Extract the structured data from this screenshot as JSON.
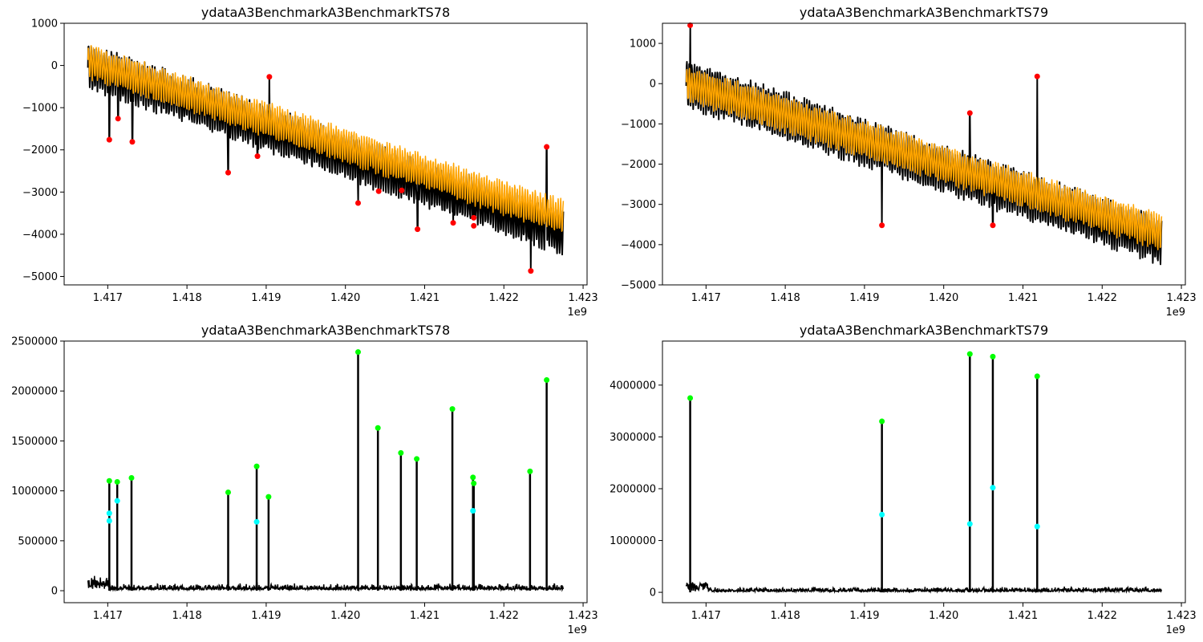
{
  "chart_data": [
    {
      "type": "line",
      "title": "ydataA3BenchmarkA3BenchmarkTS78",
      "x_offset_label": "1e9",
      "xlim": [
        1.41645,
        1.42305
      ],
      "ylim": [
        -5200,
        1000
      ],
      "x_ticks": [
        1.417,
        1.418,
        1.419,
        1.42,
        1.421,
        1.422,
        1.423
      ],
      "x_tick_labels": [
        "1.417",
        "1.418",
        "1.419",
        "1.420",
        "1.421",
        "1.422",
        "1.423"
      ],
      "y_ticks": [
        1000,
        0,
        -1000,
        -2000,
        -3000,
        -4000,
        -5000
      ],
      "y_tick_labels": [
        "1000",
        "0",
        "−1000",
        "−2000",
        "−3000",
        "−4000",
        "−5000"
      ],
      "x_range": [
        1.41675,
        1.42275
      ],
      "series": [
        {
          "color": "#000000",
          "start_value": 0,
          "end_value": -3950,
          "amplitude": 600
        },
        {
          "color": "#ffa500",
          "start_value": 100,
          "end_value": -3600,
          "amplitude": 450
        }
      ],
      "marker_color": "#ff0000",
      "anomalies": [
        {
          "x": 1.41702,
          "y": -1760
        },
        {
          "x": 1.41713,
          "y": -1260
        },
        {
          "x": 1.41731,
          "y": -1810
        },
        {
          "x": 1.41852,
          "y": -2540
        },
        {
          "x": 1.41889,
          "y": -2150
        },
        {
          "x": 1.41904,
          "y": -270
        },
        {
          "x": 1.42016,
          "y": -3260
        },
        {
          "x": 1.42042,
          "y": -2980
        },
        {
          "x": 1.42071,
          "y": -2960
        },
        {
          "x": 1.42091,
          "y": -3880
        },
        {
          "x": 1.42136,
          "y": -3730
        },
        {
          "x": 1.42162,
          "y": -3610
        },
        {
          "x": 1.42162,
          "y": -3800
        },
        {
          "x": 1.42234,
          "y": -4870
        },
        {
          "x": 1.42254,
          "y": -1930
        }
      ]
    },
    {
      "type": "line",
      "title": "ydataA3BenchmarkA3BenchmarkTS79",
      "x_offset_label": "1e9",
      "xlim": [
        1.41645,
        1.42305
      ],
      "ylim": [
        -5000,
        1500
      ],
      "x_ticks": [
        1.417,
        1.418,
        1.419,
        1.42,
        1.421,
        1.422,
        1.423
      ],
      "x_tick_labels": [
        "1.417",
        "1.418",
        "1.419",
        "1.420",
        "1.421",
        "1.422",
        "1.423"
      ],
      "y_ticks": [
        1000,
        0,
        -1000,
        -2000,
        -3000,
        -4000,
        -5000
      ],
      "y_tick_labels": [
        "1000",
        "0",
        "−1000",
        "−2000",
        "−3000",
        "−4000",
        "−5000"
      ],
      "x_range": [
        1.41675,
        1.42275
      ],
      "series": [
        {
          "color": "#000000",
          "start_value": 0,
          "end_value": -3900,
          "amplitude": 650
        },
        {
          "color": "#ffa500",
          "start_value": 0,
          "end_value": -3700,
          "amplitude": 500
        }
      ],
      "marker_color": "#ff0000",
      "anomalies": [
        {
          "x": 1.4168,
          "y": 1450
        },
        {
          "x": 1.41922,
          "y": -3520
        },
        {
          "x": 1.42033,
          "y": -730
        },
        {
          "x": 1.42062,
          "y": -3520
        },
        {
          "x": 1.42118,
          "y": 180
        }
      ]
    },
    {
      "type": "line",
      "title": "ydataA3BenchmarkA3BenchmarkTS78",
      "x_offset_label": "1e9",
      "xlim": [
        1.41645,
        1.42305
      ],
      "ylim": [
        -120000,
        2500000
      ],
      "x_ticks": [
        1.417,
        1.418,
        1.419,
        1.42,
        1.421,
        1.422,
        1.423
      ],
      "x_tick_labels": [
        "1.417",
        "1.418",
        "1.419",
        "1.420",
        "1.421",
        "1.422",
        "1.423"
      ],
      "y_ticks": [
        0,
        500000,
        1000000,
        1500000,
        2000000,
        2500000
      ],
      "y_tick_labels": [
        "0",
        "500000",
        "1000000",
        "1500000",
        "2000000",
        "2500000"
      ],
      "x_range": [
        1.41675,
        1.42275
      ],
      "series": [
        {
          "color": "#000000",
          "baseline": 40000
        }
      ],
      "spikes": [
        {
          "x": 1.41702,
          "y": 1100000
        },
        {
          "x": 1.41712,
          "y": 1090000
        },
        {
          "x": 1.4173,
          "y": 1130000
        },
        {
          "x": 1.41852,
          "y": 985000
        },
        {
          "x": 1.41888,
          "y": 1245000
        },
        {
          "x": 1.41903,
          "y": 940000
        },
        {
          "x": 1.42016,
          "y": 2390000
        },
        {
          "x": 1.42041,
          "y": 1630000
        },
        {
          "x": 1.4207,
          "y": 1380000
        },
        {
          "x": 1.4209,
          "y": 1320000
        },
        {
          "x": 1.42135,
          "y": 1820000
        },
        {
          "x": 1.42161,
          "y": 1135000
        },
        {
          "x": 1.42162,
          "y": 1075000
        },
        {
          "x": 1.42233,
          "y": 1195000
        },
        {
          "x": 1.42254,
          "y": 2110000
        }
      ],
      "peak_color": "#00ff00",
      "secondary_color": "#00ffff",
      "secondary_points": [
        {
          "x": 1.41702,
          "y": 775000
        },
        {
          "x": 1.41702,
          "y": 700000
        },
        {
          "x": 1.41712,
          "y": 900000
        },
        {
          "x": 1.41888,
          "y": 690000
        },
        {
          "x": 1.42161,
          "y": 800000
        }
      ]
    },
    {
      "type": "line",
      "title": "ydataA3BenchmarkA3BenchmarkTS79",
      "x_offset_label": "1e9",
      "xlim": [
        1.41645,
        1.42305
      ],
      "ylim": [
        -200000,
        4850000
      ],
      "x_ticks": [
        1.417,
        1.418,
        1.419,
        1.42,
        1.421,
        1.422,
        1.423
      ],
      "x_tick_labels": [
        "1.417",
        "1.418",
        "1.419",
        "1.420",
        "1.421",
        "1.422",
        "1.423"
      ],
      "y_ticks": [
        0,
        1000000,
        2000000,
        3000000,
        4000000
      ],
      "y_tick_labels": [
        "0",
        "1000000",
        "2000000",
        "3000000",
        "4000000"
      ],
      "x_range": [
        1.41675,
        1.42275
      ],
      "series": [
        {
          "color": "#000000",
          "baseline": 60000
        }
      ],
      "spikes": [
        {
          "x": 1.4168,
          "y": 3750000
        },
        {
          "x": 1.41922,
          "y": 3300000
        },
        {
          "x": 1.42033,
          "y": 4600000
        },
        {
          "x": 1.42062,
          "y": 4550000
        },
        {
          "x": 1.42118,
          "y": 4170000
        }
      ],
      "peak_color": "#00ff00",
      "secondary_color": "#00ffff",
      "secondary_points": [
        {
          "x": 1.41922,
          "y": 1500000
        },
        {
          "x": 1.42033,
          "y": 1320000
        },
        {
          "x": 1.42062,
          "y": 2020000
        },
        {
          "x": 1.42118,
          "y": 1270000
        }
      ]
    }
  ]
}
